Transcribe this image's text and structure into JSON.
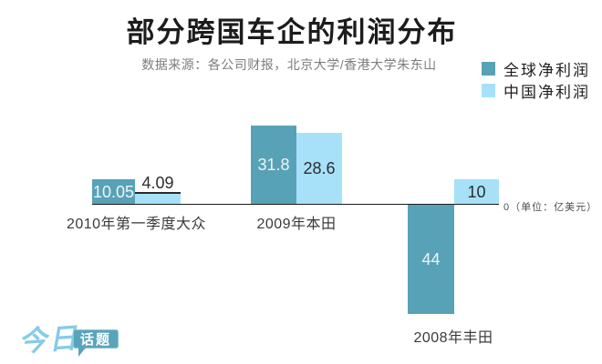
{
  "title": "部分跨国车企的利润分布",
  "subtitle": "数据来源：各公司财报，北京大学/香港大学朱东山",
  "legend": {
    "items": [
      {
        "label": "全球净利润"
      },
      {
        "label": "中国净利润"
      }
    ]
  },
  "axis": {
    "unit_note": "0（单位：亿美元）"
  },
  "logo": {
    "script": "今日",
    "badge": "话题"
  },
  "colors": {
    "global_bar": "#58a2b7",
    "china_bar": "#a6e1f9",
    "title": "#1c1c1c",
    "subtitle": "#7d7d7d",
    "axis_line": "#1a1a1a",
    "value_on_dark": "#edf5f7",
    "value_on_light": "#2d2d2d",
    "category_label": "#3b3b3b",
    "unit_note": "#4f4f4f",
    "logo_script": "#87cbe7",
    "logo_badge": "#58a4bb"
  },
  "chart_data": {
    "type": "bar",
    "title": "部分跨国车企的利润分布",
    "unit": "亿美元",
    "categories": [
      "2010年第一季度大众",
      "2009年本田",
      "2008年丰田"
    ],
    "series": [
      {
        "name": "全球净利润",
        "values": [
          10.05,
          31.8,
          -44
        ]
      },
      {
        "name": "中国净利润",
        "values": [
          4.09,
          28.6,
          10
        ]
      }
    ],
    "value_labels": [
      [
        "10.05",
        "4.09"
      ],
      [
        "31.8",
        "28.6"
      ],
      [
        "44",
        "10"
      ]
    ],
    "baseline": 0,
    "legend_position": "top-right",
    "grid": false
  }
}
